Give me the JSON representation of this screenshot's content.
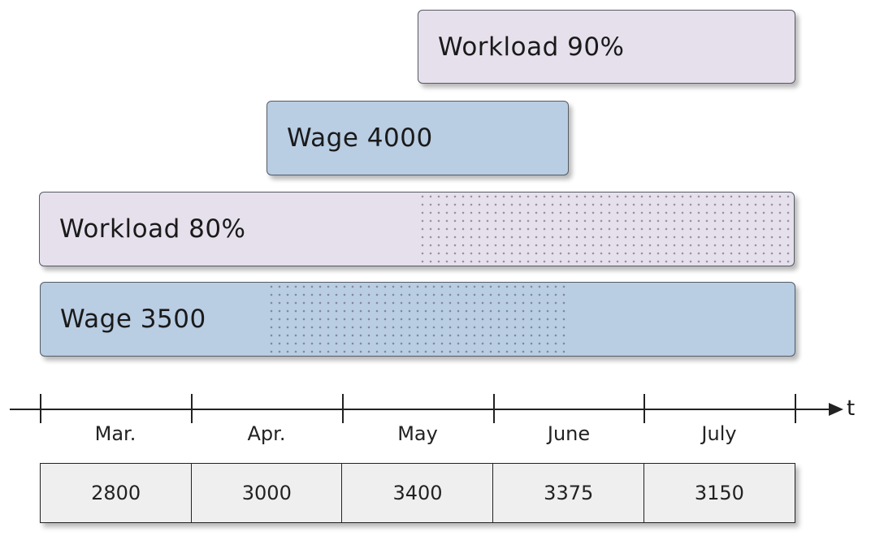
{
  "bars": [
    {
      "label": "Workload 90%",
      "fill_color": "#e6e0ec"
    },
    {
      "label": "Wage 4000",
      "fill_color": "#b9cde3"
    },
    {
      "label": "Workload 80%",
      "fill_color": "#e6e0ec"
    },
    {
      "label": "Wage 3500",
      "fill_color": "#b9cde3"
    }
  ],
  "axis": {
    "label": "t"
  },
  "months": [
    "Mar.",
    "Apr.",
    "May",
    "June",
    "July"
  ],
  "values": [
    "2800",
    "3000",
    "3400",
    "3375",
    "3150"
  ]
}
